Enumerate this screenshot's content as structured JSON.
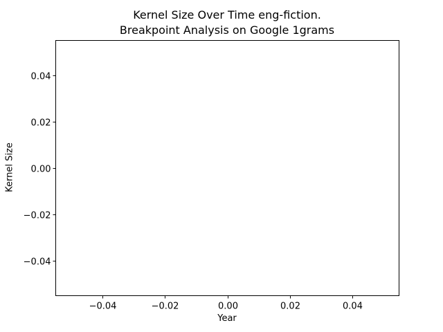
{
  "chart_data": {
    "type": "line",
    "title": "Kernel Size Over Time eng-fiction.",
    "subtitle": "Breakpoint Analysis on Google 1grams",
    "xlabel": "Year",
    "ylabel": "Kernel Size",
    "xlim": [
      -0.055,
      0.055
    ],
    "ylim": [
      -0.055,
      0.055
    ],
    "x_ticks": [
      -0.04,
      -0.02,
      0.0,
      0.02,
      0.04
    ],
    "x_tick_labels": [
      "−0.04",
      "−0.02",
      "0.00",
      "0.02",
      "0.04"
    ],
    "y_ticks": [
      -0.04,
      -0.02,
      0.0,
      0.02,
      0.04
    ],
    "y_tick_labels": [
      "−0.04",
      "−0.02",
      "0.00",
      "0.02",
      "0.04"
    ],
    "grid": false,
    "series": []
  },
  "colors": {
    "axes": "#000000",
    "background": "#ffffff"
  }
}
